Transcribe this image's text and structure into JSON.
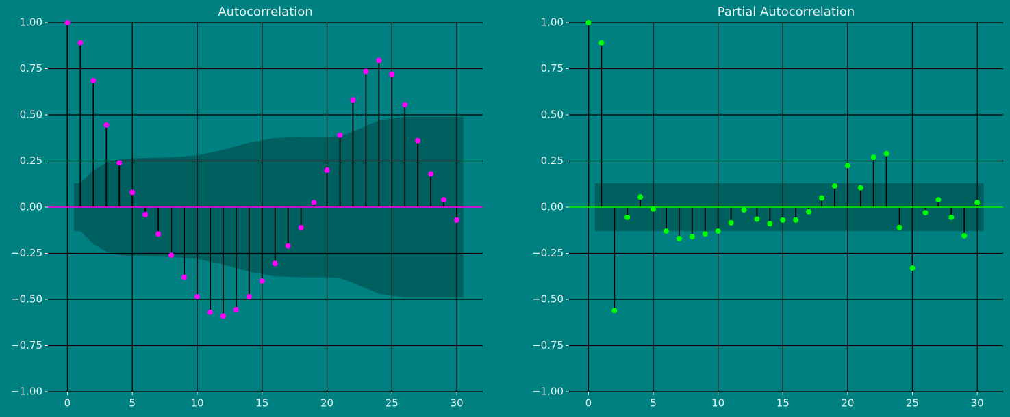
{
  "chart_data": [
    {
      "type": "stem",
      "title": "Autocorrelation",
      "x": [
        0,
        1,
        2,
        3,
        4,
        5,
        6,
        7,
        8,
        9,
        10,
        11,
        12,
        13,
        14,
        15,
        16,
        17,
        18,
        19,
        20,
        21,
        22,
        23,
        24,
        25,
        26,
        27,
        28,
        29,
        30
      ],
      "values": [
        1.0,
        0.89,
        0.685,
        0.445,
        0.24,
        0.08,
        -0.04,
        -0.145,
        -0.26,
        -0.38,
        -0.485,
        -0.57,
        -0.59,
        -0.555,
        -0.485,
        -0.4,
        -0.305,
        -0.21,
        -0.11,
        0.025,
        0.2,
        0.39,
        0.58,
        0.735,
        0.795,
        0.72,
        0.555,
        0.36,
        0.18,
        0.04,
        -0.07
      ],
      "color": "#ff00ff",
      "band_x": [
        0.5,
        1,
        2,
        3,
        4,
        5,
        8,
        10,
        12,
        14,
        16,
        18,
        20,
        21,
        22,
        23,
        24,
        25,
        26,
        30,
        30.5
      ],
      "band_upper": [
        0.13,
        0.13,
        0.2,
        0.24,
        0.26,
        0.265,
        0.27,
        0.28,
        0.31,
        0.35,
        0.375,
        0.38,
        0.38,
        0.385,
        0.41,
        0.44,
        0.47,
        0.48,
        0.49,
        0.49,
        0.49
      ],
      "band_lower": [
        -0.13,
        -0.13,
        -0.2,
        -0.24,
        -0.26,
        -0.265,
        -0.27,
        -0.28,
        -0.31,
        -0.35,
        -0.375,
        -0.38,
        -0.38,
        -0.385,
        -0.41,
        -0.44,
        -0.47,
        -0.48,
        -0.49,
        -0.49,
        -0.49
      ],
      "xlim": [
        -1.5,
        32
      ],
      "ylim": [
        -1,
        1
      ],
      "xticks": [
        0,
        5,
        10,
        15,
        20,
        25,
        30
      ],
      "yticks": [
        {
          "value": -1,
          "label": "−1.00"
        },
        {
          "value": -0.75,
          "label": "−0.75"
        },
        {
          "value": -0.5,
          "label": "−0.50"
        },
        {
          "value": -0.25,
          "label": "−0.25"
        },
        {
          "value": 0,
          "label": "0.00"
        },
        {
          "value": 0.25,
          "label": "0.25"
        },
        {
          "value": 0.5,
          "label": "0.50"
        },
        {
          "value": 0.75,
          "label": "0.75"
        },
        {
          "value": 1,
          "label": "1.00"
        }
      ],
      "grid": true
    },
    {
      "type": "stem",
      "title": "Partial Autocorrelation",
      "x": [
        0,
        1,
        2,
        3,
        4,
        5,
        6,
        7,
        8,
        9,
        10,
        11,
        12,
        13,
        14,
        15,
        16,
        17,
        18,
        19,
        20,
        21,
        22,
        23,
        24,
        25,
        26,
        27,
        28,
        29,
        30
      ],
      "values": [
        1.0,
        0.89,
        -0.56,
        -0.055,
        0.055,
        -0.01,
        -0.13,
        -0.17,
        -0.16,
        -0.145,
        -0.13,
        -0.085,
        -0.015,
        -0.065,
        -0.09,
        -0.07,
        -0.07,
        -0.025,
        0.05,
        0.115,
        0.225,
        0.105,
        0.27,
        0.29,
        -0.11,
        -0.33,
        -0.03,
        0.04,
        -0.055,
        -0.155,
        0.025
      ],
      "color": "#00ff00",
      "band_x": [
        0.5,
        30.5
      ],
      "band_upper": [
        0.13,
        0.13
      ],
      "band_lower": [
        -0.13,
        -0.13
      ],
      "xlim": [
        -1.5,
        32
      ],
      "ylim": [
        -1,
        1
      ],
      "xticks": [
        0,
        5,
        10,
        15,
        20,
        25,
        30
      ],
      "yticks": [
        {
          "value": -1,
          "label": "−1.00"
        },
        {
          "value": -0.75,
          "label": "−0.75"
        },
        {
          "value": -0.5,
          "label": "−0.50"
        },
        {
          "value": -0.25,
          "label": "−0.25"
        },
        {
          "value": 0,
          "label": "0.00"
        },
        {
          "value": 0.25,
          "label": "0.25"
        },
        {
          "value": 0.5,
          "label": "0.50"
        },
        {
          "value": 0.75,
          "label": "0.75"
        },
        {
          "value": 1,
          "label": "1.00"
        }
      ],
      "grid": true
    }
  ]
}
